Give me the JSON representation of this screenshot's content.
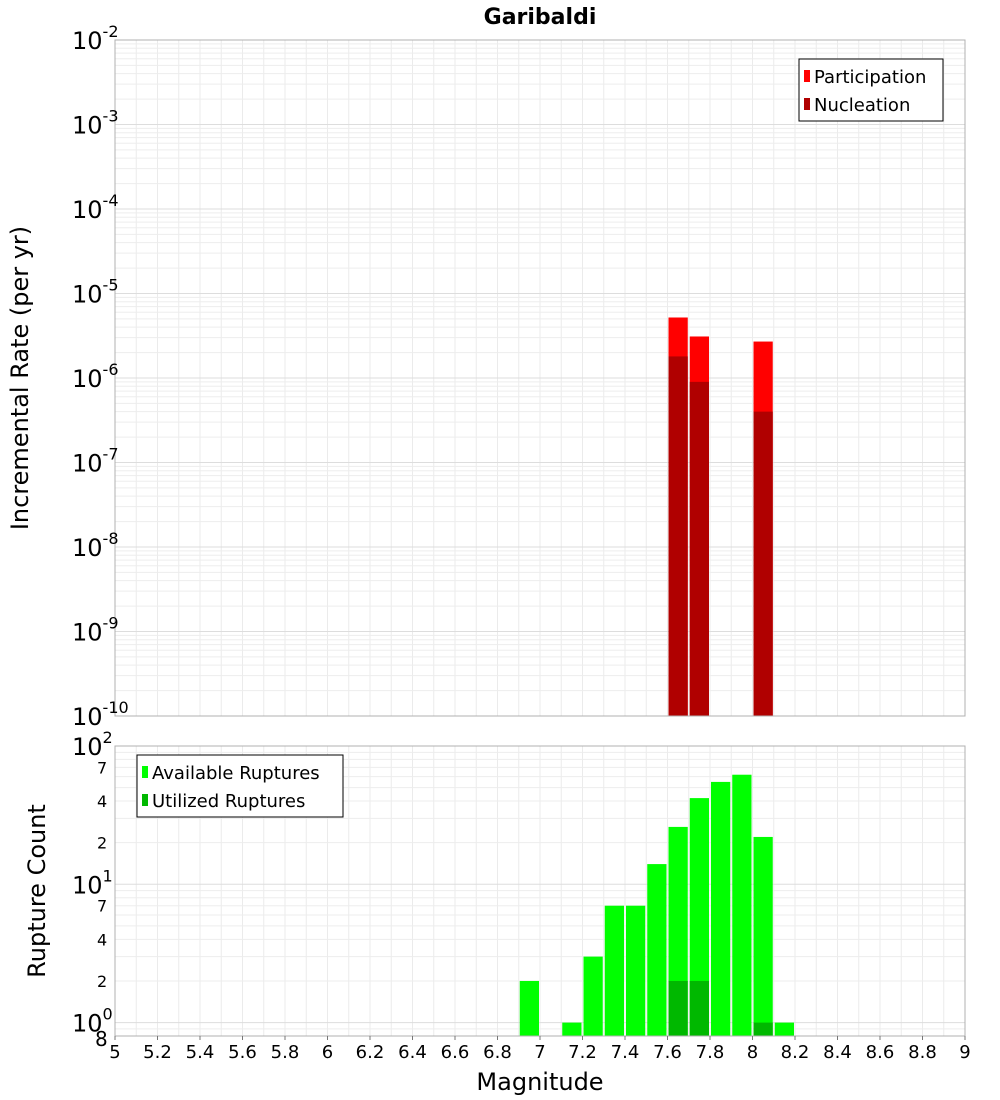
{
  "chart_data": {
    "title": "Garibaldi",
    "xlabel": "Magnitude",
    "xlim": [
      5,
      9
    ],
    "x_ticks": [
      5,
      5.2,
      5.4,
      5.6,
      5.8,
      6,
      6.2,
      6.4,
      6.6,
      6.8,
      7,
      7.2,
      7.4,
      7.6,
      7.8,
      8,
      8.2,
      8.4,
      8.6,
      8.8,
      9
    ],
    "x_tick_labels": [
      "5",
      "5.2",
      "5.4",
      "5.6",
      "5.8",
      "6",
      "6.2",
      "6.4",
      "6.6",
      "6.8",
      "7",
      "7.2",
      "7.4",
      "7.6",
      "7.8",
      "8",
      "8.2",
      "8.4",
      "8.6",
      "8.8",
      "9"
    ],
    "bin_width": 0.1,
    "panels": [
      {
        "type": "bar",
        "scale": "log",
        "ylabel": "Incremental Rate (per yr)",
        "ylim": [
          1e-10,
          0.01
        ],
        "y_major_ticks": [
          {
            "value": 0.01,
            "base": "10",
            "exp": "-2"
          },
          {
            "value": 0.001,
            "base": "10",
            "exp": "-3"
          },
          {
            "value": 0.0001,
            "base": "10",
            "exp": "-4"
          },
          {
            "value": 1e-05,
            "base": "10",
            "exp": "-5"
          },
          {
            "value": 1e-06,
            "base": "10",
            "exp": "-6"
          },
          {
            "value": 1e-07,
            "base": "10",
            "exp": "-7"
          },
          {
            "value": 1e-08,
            "base": "10",
            "exp": "-8"
          },
          {
            "value": 1e-09,
            "base": "10",
            "exp": "-9"
          },
          {
            "value": 1e-10,
            "base": "10",
            "exp": "-10"
          }
        ],
        "legend_position": "top-right",
        "series": [
          {
            "name": "Participation",
            "color": "#ff0000",
            "x": [
              7.65,
              7.75,
              8.05
            ],
            "values": [
              5.2e-06,
              3.1e-06,
              2.7e-06
            ]
          },
          {
            "name": "Nucleation",
            "color": "#b00000",
            "x": [
              7.65,
              7.75,
              8.05
            ],
            "values": [
              1.8e-06,
              9e-07,
              4e-07
            ]
          }
        ]
      },
      {
        "type": "bar",
        "scale": "log",
        "ylabel": "Rupture Count",
        "ylim": [
          0.8,
          100
        ],
        "y_major_ticks": [
          {
            "value": 100,
            "base": "10",
            "exp": "2"
          },
          {
            "value": 10,
            "base": "10",
            "exp": "1"
          },
          {
            "value": 1,
            "base": "10",
            "exp": "0"
          }
        ],
        "y_minor_labels": [
          {
            "value": 70,
            "label": "7"
          },
          {
            "value": 40,
            "label": "4"
          },
          {
            "value": 20,
            "label": "2"
          },
          {
            "value": 7,
            "label": "7"
          },
          {
            "value": 4,
            "label": "4"
          },
          {
            "value": 2,
            "label": "2"
          },
          {
            "value": 0.8,
            "label": "8"
          }
        ],
        "legend_position": "top-left",
        "series": [
          {
            "name": "Available Ruptures",
            "color": "#00ff00",
            "x": [
              6.95,
              7.15,
              7.25,
              7.35,
              7.45,
              7.55,
              7.65,
              7.75,
              7.85,
              7.95,
              8.05,
              8.15
            ],
            "values": [
              2,
              1,
              3,
              7,
              7,
              14,
              26,
              42,
              55,
              62,
              22,
              1
            ]
          },
          {
            "name": "Utilized Ruptures",
            "color": "#00b800",
            "x": [
              7.65,
              7.75,
              8.05
            ],
            "values": [
              2,
              2,
              1
            ]
          }
        ]
      }
    ]
  }
}
